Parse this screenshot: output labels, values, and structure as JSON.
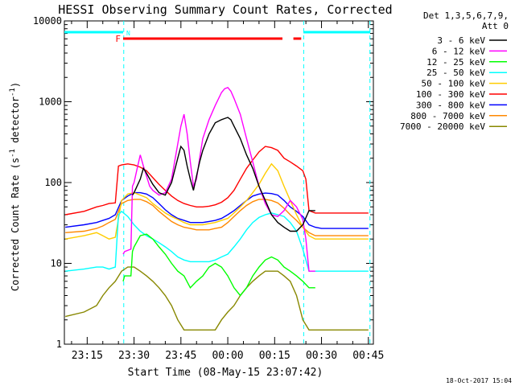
{
  "chart_data": {
    "type": "line",
    "title": "HESSI Observing Summary Count Rates, Corrected",
    "xlabel": "Start Time (08-May-15 23:07:42)",
    "ylabel_main": "Corrected Count Rate (s",
    "ylabel_sup1": "-1",
    "ylabel_mid": " detector",
    "ylabel_sup2": "-1",
    "ylabel_end": ")",
    "yscale": "log",
    "ylim": [
      1,
      10000
    ],
    "xlim_minutes": [
      -52.3,
      46.6
    ],
    "x_ticks": [
      {
        "label": "23:15",
        "minute": -45
      },
      {
        "label": "23:30",
        "minute": -30
      },
      {
        "label": "23:45",
        "minute": -15
      },
      {
        "label": "00:00",
        "minute": 0
      },
      {
        "label": "00:15",
        "minute": 15
      },
      {
        "label": "00:30",
        "minute": 30
      },
      {
        "label": "00:45",
        "minute": 45
      }
    ],
    "y_ticks": [
      {
        "label": "1",
        "value": 1
      },
      {
        "label": "10",
        "value": 10
      },
      {
        "label": "100",
        "value": 100
      },
      {
        "label": "1000",
        "value": 1000
      },
      {
        "label": "10000",
        "value": 10000
      }
    ],
    "legend_title_1": "Det 1,3,5,6,7,9,",
    "legend_title_2": "Att 0",
    "legend_placement": "right",
    "series": [
      {
        "name": "3 - 6 keV",
        "color": "#000000",
        "x": [
          -30.5,
          -30,
          -28,
          -27,
          -26,
          -24,
          -22,
          -20,
          -18,
          -16,
          -15,
          -14,
          -13,
          -12,
          -11,
          -10,
          -9,
          -8,
          -6,
          -4,
          -2,
          -1,
          0,
          1,
          2,
          4,
          6,
          8,
          10,
          12,
          14,
          16,
          18,
          20,
          22,
          24,
          26,
          28
        ],
        "y": [
          70,
          75,
          110,
          150,
          130,
          95,
          75,
          70,
          100,
          200,
          280,
          250,
          160,
          110,
          80,
          120,
          180,
          250,
          400,
          550,
          600,
          620,
          640,
          600,
          500,
          350,
          220,
          150,
          90,
          60,
          40,
          32,
          28,
          25,
          25,
          30,
          45,
          45
        ]
      },
      {
        "name": "6 - 12 keV",
        "color": "#ff00ff",
        "x": [
          -33.5,
          -33,
          -31,
          -30.5,
          -30,
          -29,
          -28,
          -27,
          -26,
          -25,
          -24,
          -22,
          -20,
          -18,
          -16,
          -15,
          -14,
          -13,
          -12,
          -11,
          -10,
          -9,
          -8,
          -6,
          -4,
          -2,
          -1,
          0,
          1,
          2,
          4,
          6,
          8,
          10,
          12,
          14,
          16,
          18,
          20,
          22,
          24,
          25,
          26,
          28
        ],
        "y": [
          13,
          14,
          15,
          90,
          100,
          150,
          220,
          160,
          120,
          90,
          80,
          70,
          75,
          110,
          300,
          500,
          700,
          400,
          180,
          90,
          110,
          200,
          350,
          600,
          900,
          1300,
          1450,
          1500,
          1350,
          1100,
          700,
          350,
          180,
          90,
          55,
          40,
          38,
          45,
          60,
          50,
          35,
          20,
          8,
          8
        ]
      },
      {
        "name": "12 - 25 keV",
        "color": "#00ff00",
        "x": [
          -33.5,
          -33,
          -31,
          -30.5,
          -30,
          -28,
          -26,
          -24,
          -22,
          -20,
          -18,
          -16,
          -14,
          -12,
          -10,
          -8,
          -6,
          -4,
          -2,
          0,
          2,
          4,
          6,
          8,
          10,
          12,
          14,
          16,
          18,
          20,
          22,
          24,
          26,
          28
        ],
        "y": [
          6,
          7,
          7,
          14,
          16,
          22,
          23,
          20,
          16,
          13,
          10,
          8,
          7,
          5,
          6,
          7,
          9,
          10,
          9,
          7,
          5,
          4,
          5,
          7,
          9,
          11,
          12,
          11,
          9,
          8,
          7,
          6,
          5,
          5
        ]
      },
      {
        "name": "25 - 50 keV",
        "color": "#00ffff",
        "x": [
          -52,
          -46,
          -42,
          -40,
          -38,
          -36,
          -35,
          -34,
          -32,
          -30,
          -28,
          -26,
          -24,
          -22,
          -20,
          -18,
          -16,
          -14,
          -12,
          -10,
          -8,
          -6,
          -4,
          -2,
          0,
          2,
          4,
          6,
          8,
          10,
          12,
          14,
          16,
          18,
          20,
          22,
          24,
          26,
          28,
          30,
          35,
          40,
          45
        ],
        "y": [
          8,
          8.5,
          9,
          9,
          8.5,
          9,
          40,
          44,
          38,
          30,
          25,
          22,
          20,
          18,
          16,
          14,
          12,
          11,
          10.5,
          10.5,
          10.5,
          10.5,
          11,
          12,
          13,
          16,
          20,
          26,
          32,
          37,
          40,
          42,
          40,
          38,
          32,
          25,
          15,
          8,
          8,
          8,
          8,
          8,
          8
        ]
      },
      {
        "name": "50 - 100 keV",
        "color": "#ffcc00",
        "x": [
          -52,
          -46,
          -42,
          -40,
          -38,
          -36,
          -34,
          -32,
          -30,
          -28,
          -26,
          -24,
          -22,
          -20,
          -18,
          -16,
          -14,
          -12,
          -10,
          -8,
          -6,
          -4,
          -2,
          0,
          2,
          4,
          6,
          8,
          10,
          12,
          14,
          16,
          18,
          20,
          22,
          24,
          26,
          28,
          30,
          35,
          40,
          45
        ],
        "y": [
          20,
          22,
          24,
          22,
          20,
          21,
          60,
          72,
          75,
          70,
          65,
          55,
          48,
          42,
          38,
          35,
          32,
          30,
          30,
          30,
          31,
          32,
          34,
          36,
          42,
          50,
          60,
          75,
          95,
          130,
          170,
          140,
          90,
          60,
          40,
          28,
          22,
          20,
          20,
          20,
          20,
          20
        ]
      },
      {
        "name": "100 - 300 keV",
        "color": "#ff0000",
        "x": [
          -52,
          -46,
          -42,
          -40,
          -38,
          -36,
          -35,
          -34,
          -32,
          -30,
          -28,
          -26,
          -24,
          -22,
          -20,
          -18,
          -16,
          -14,
          -12,
          -10,
          -8,
          -6,
          -4,
          -2,
          0,
          2,
          4,
          6,
          8,
          10,
          12,
          14,
          16,
          18,
          20,
          22,
          24,
          25,
          26,
          28,
          30,
          35,
          40,
          45
        ],
        "y": [
          40,
          44,
          50,
          52,
          55,
          56,
          160,
          165,
          170,
          165,
          155,
          140,
          115,
          95,
          80,
          68,
          60,
          55,
          52,
          50,
          50,
          51,
          53,
          57,
          65,
          80,
          110,
          150,
          190,
          240,
          280,
          270,
          250,
          200,
          180,
          160,
          140,
          110,
          45,
          42,
          42,
          42,
          42,
          42
        ]
      },
      {
        "name": "300 - 800 keV",
        "color": "#0000ff",
        "x": [
          -52,
          -46,
          -42,
          -40,
          -38,
          -36,
          -34,
          -32,
          -30,
          -28,
          -26,
          -24,
          -22,
          -20,
          -18,
          -16,
          -14,
          -12,
          -10,
          -8,
          -6,
          -4,
          -2,
          0,
          2,
          4,
          6,
          8,
          10,
          12,
          14,
          16,
          18,
          20,
          22,
          24,
          26,
          28,
          30,
          35,
          40,
          45
        ],
        "y": [
          28,
          30,
          32,
          34,
          36,
          40,
          60,
          68,
          75,
          75,
          72,
          65,
          55,
          46,
          40,
          36,
          34,
          32,
          32,
          32,
          33,
          34,
          36,
          40,
          45,
          52,
          60,
          68,
          72,
          74,
          73,
          70,
          60,
          50,
          44,
          38,
          30,
          28,
          27,
          27,
          27,
          27
        ]
      },
      {
        "name": "800 - 7000 keV",
        "color": "#ff8800",
        "x": [
          -52,
          -46,
          -42,
          -40,
          -38,
          -36,
          -34,
          -32,
          -30,
          -28,
          -26,
          -24,
          -22,
          -20,
          -18,
          -16,
          -14,
          -12,
          -10,
          -8,
          -6,
          -4,
          -2,
          0,
          2,
          4,
          6,
          8,
          10,
          12,
          14,
          16,
          18,
          20,
          22,
          24,
          26,
          28,
          30,
          35,
          40,
          45
        ],
        "y": [
          24,
          25,
          27,
          29,
          32,
          35,
          55,
          60,
          62,
          62,
          58,
          52,
          44,
          38,
          33,
          30,
          28,
          27,
          26,
          26,
          26,
          27,
          28,
          32,
          38,
          45,
          52,
          58,
          62,
          62,
          60,
          56,
          48,
          40,
          34,
          28,
          24,
          22,
          22,
          22,
          22,
          22
        ]
      },
      {
        "name": "7000 - 20000 keV",
        "color": "#888800",
        "x": [
          -52,
          -46,
          -42,
          -40,
          -38,
          -36,
          -34,
          -32,
          -30,
          -28,
          -26,
          -24,
          -22,
          -20,
          -18,
          -16,
          -14,
          -12,
          -10,
          -8,
          -6,
          -4,
          -2,
          0,
          2,
          4,
          6,
          8,
          10,
          12,
          14,
          16,
          18,
          20,
          22,
          24,
          26,
          28,
          30,
          35,
          40,
          45
        ],
        "y": [
          2.2,
          2.5,
          3,
          4,
          5,
          6,
          8,
          9,
          9,
          8,
          7,
          6,
          5,
          4,
          3,
          2,
          1.5,
          1.5,
          1.5,
          1.5,
          1.5,
          1.5,
          2,
          2.5,
          3,
          4,
          5,
          6,
          7,
          8,
          8,
          8,
          7,
          6,
          4,
          2,
          1.5,
          1.5,
          1.5,
          1.5,
          1.5,
          1.5
        ]
      }
    ],
    "flags": {
      "eclipse_bars": [
        {
          "x0": -52.3,
          "x1": -33.5
        },
        {
          "x0": 24.2,
          "x1": 45.6
        }
      ],
      "eclipse_color": "#00ffff",
      "flare_label": "F",
      "flare_bars": [
        {
          "x0": -33.5,
          "x1": 17.5
        },
        {
          "x0": 21.0,
          "x1": 23.5
        }
      ],
      "flare_color": "#ff0000",
      "saa_label": "N",
      "vertical_dashed": [
        -33.3,
        24.3,
        45.5
      ]
    }
  },
  "timestamp": "18-Oct-2017 15:04"
}
